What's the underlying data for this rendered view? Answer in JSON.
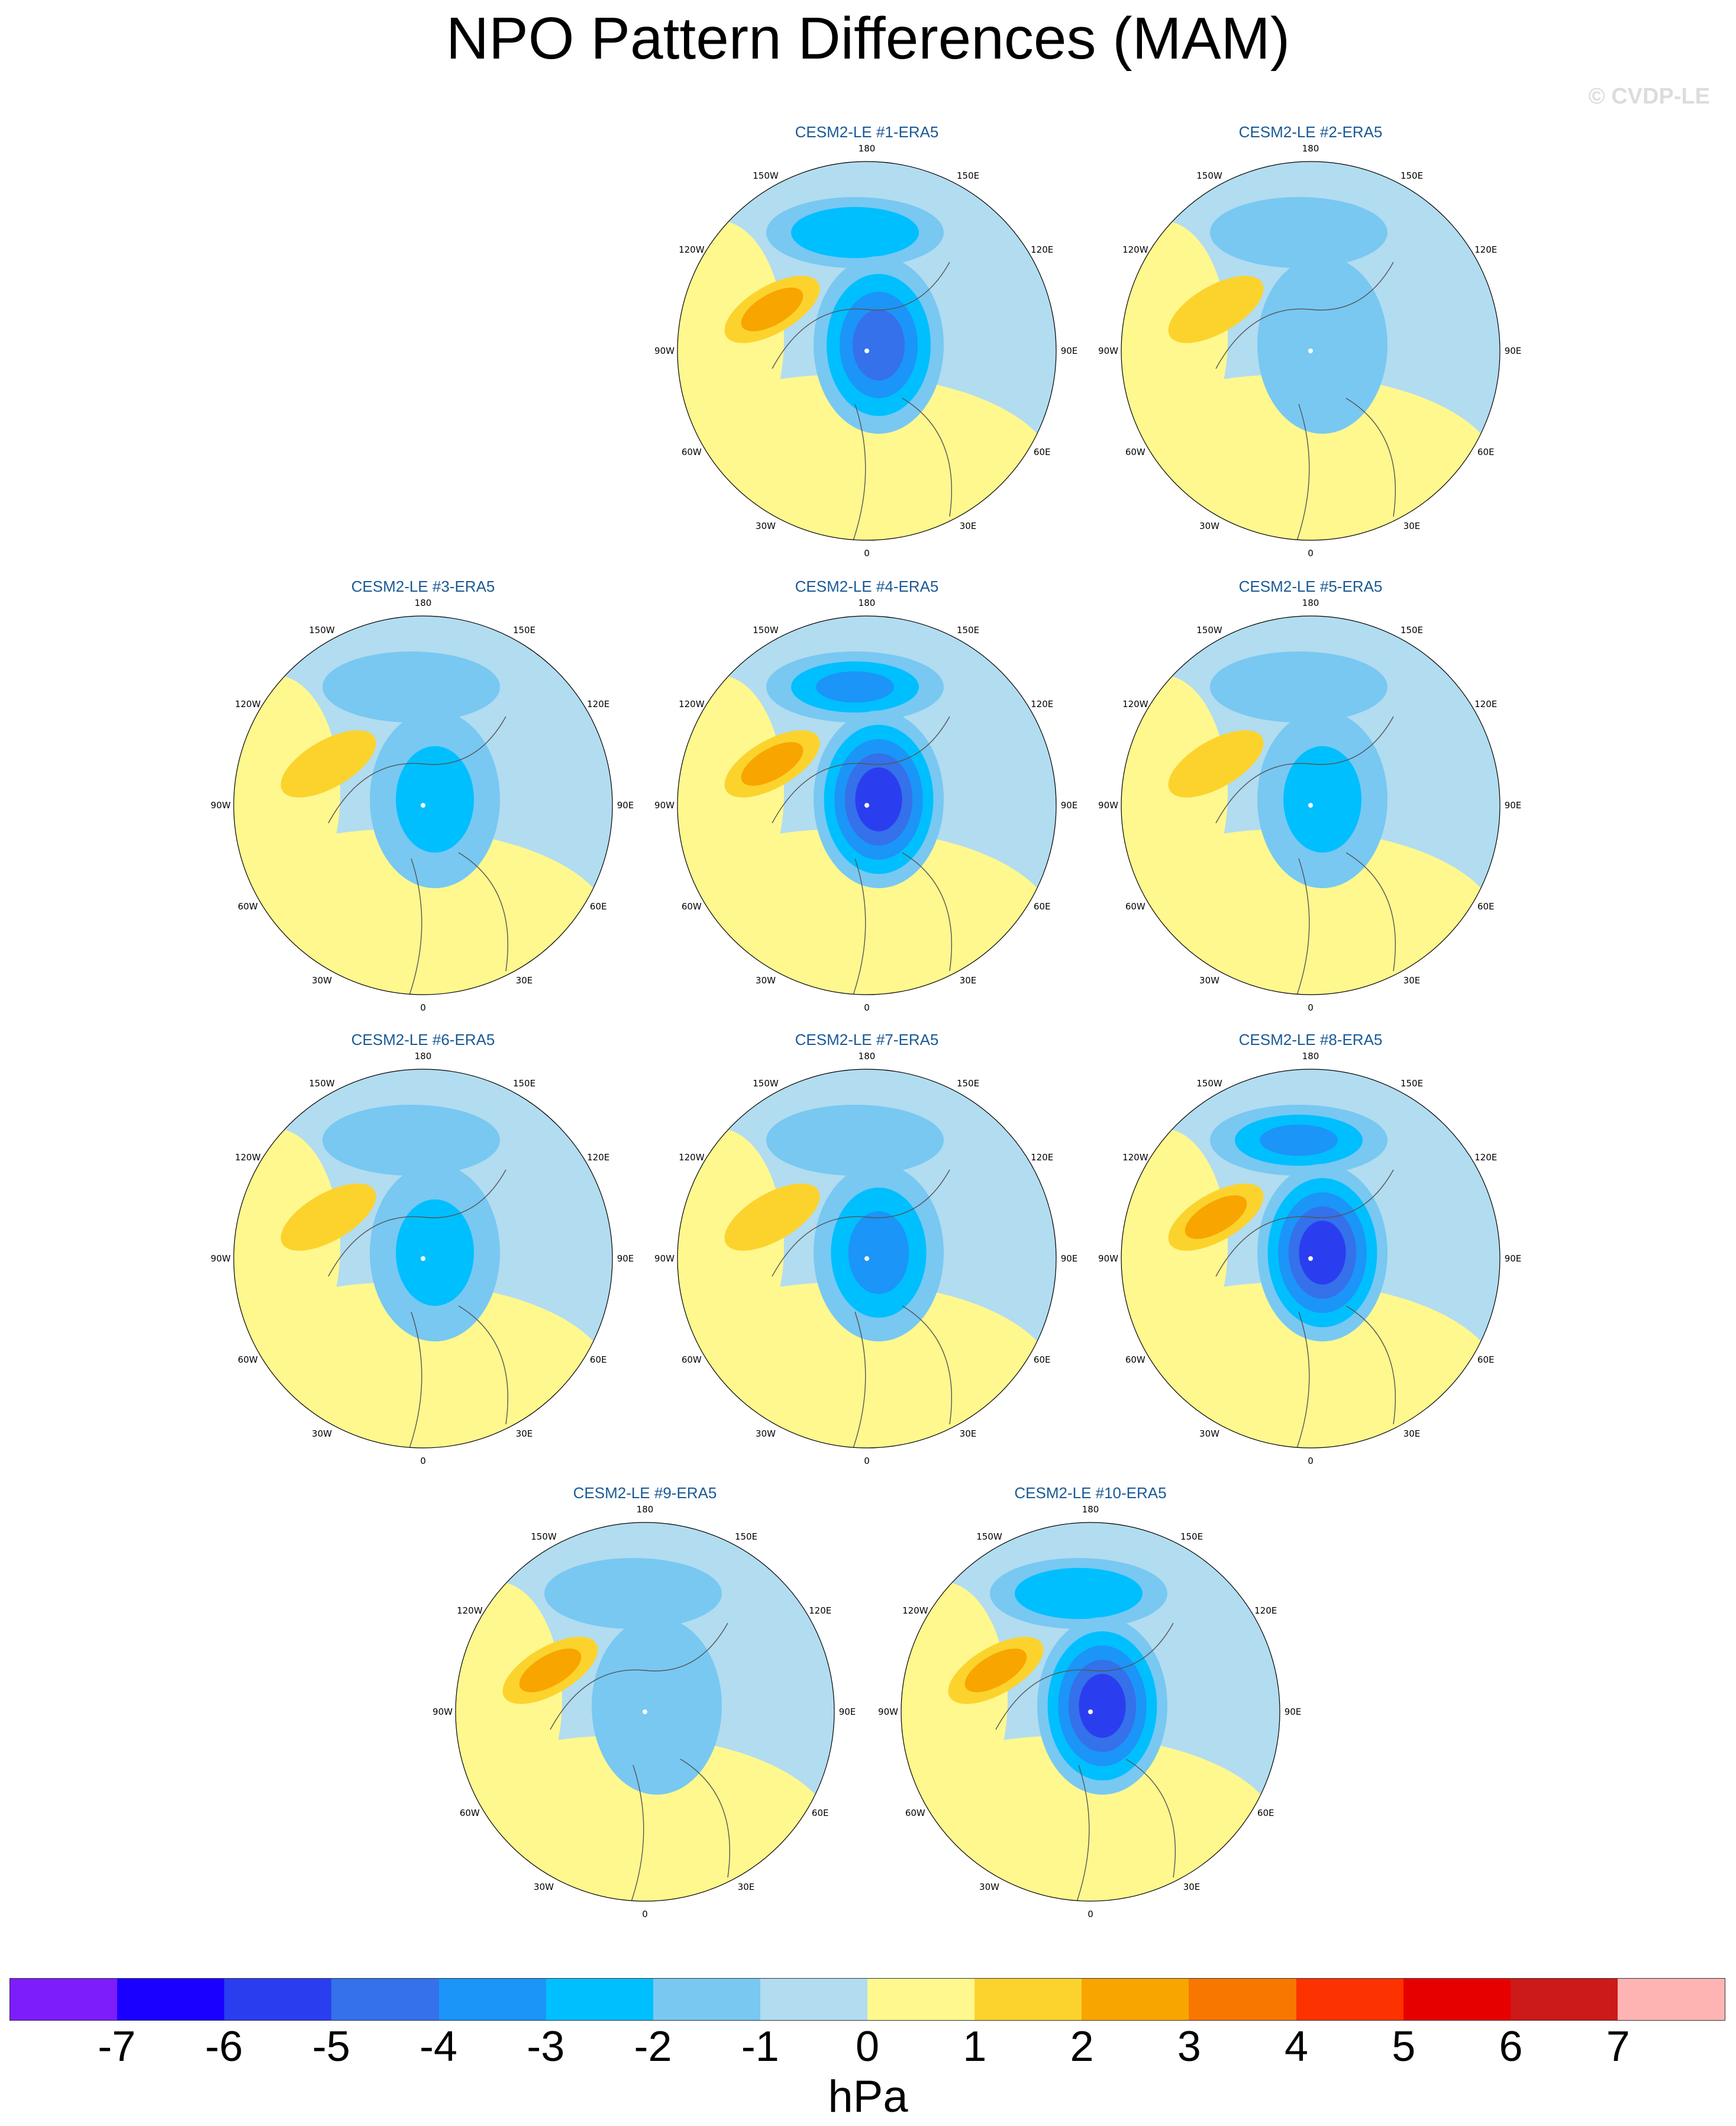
{
  "title": "NPO Pattern Differences (MAM)",
  "credit": "© CVDP-LE",
  "units": "hPa",
  "lon_labels": {
    "top": "180",
    "bottom": "0",
    "left": "90W",
    "right": "90E",
    "ul": "150W",
    "ur": "150E",
    "lu": "120W",
    "ru": "120E",
    "ll": "60W",
    "rl": "60E",
    "bl": "30W",
    "br": "30E"
  },
  "panels": [
    {
      "title": "CESM2-LE #1-ERA5",
      "neg_strength": 4.6,
      "pos_strength": 2.2
    },
    {
      "title": "CESM2-LE #2-ERA5",
      "neg_strength": 1.4,
      "pos_strength": 1.6
    },
    {
      "title": "CESM2-LE #3-ERA5",
      "neg_strength": 2.0,
      "pos_strength": 1.8
    },
    {
      "title": "CESM2-LE #4-ERA5",
      "neg_strength": 5.6,
      "pos_strength": 2.6
    },
    {
      "title": "CESM2-LE #5-ERA5",
      "neg_strength": 2.2,
      "pos_strength": 1.2
    },
    {
      "title": "CESM2-LE #6-ERA5",
      "neg_strength": 2.4,
      "pos_strength": 1.1
    },
    {
      "title": "CESM2-LE #7-ERA5",
      "neg_strength": 3.4,
      "pos_strength": 1.4
    },
    {
      "title": "CESM2-LE #8-ERA5",
      "neg_strength": 5.8,
      "pos_strength": 2.4
    },
    {
      "title": "CESM2-LE #9-ERA5",
      "neg_strength": 1.8,
      "pos_strength": 2.0
    },
    {
      "title": "CESM2-LE #10-ERA5",
      "neg_strength": 5.0,
      "pos_strength": 2.6
    }
  ],
  "colorbar": {
    "colors": [
      "#7c1dfa",
      "#1a00ff",
      "#2a3ef0",
      "#3471ea",
      "#1b95f8",
      "#00bfff",
      "#78c8f2",
      "#b2dcf0",
      "#fff88f",
      "#fcd32d",
      "#f8a500",
      "#f77700",
      "#fc3200",
      "#e70000",
      "#cc1a1a",
      "#ffb4b4"
    ],
    "ticks": [
      "-7",
      "-6",
      "-5",
      "-4",
      "-3",
      "-2",
      "-1",
      "0",
      "1",
      "2",
      "3",
      "4",
      "5",
      "6",
      "7"
    ]
  }
}
